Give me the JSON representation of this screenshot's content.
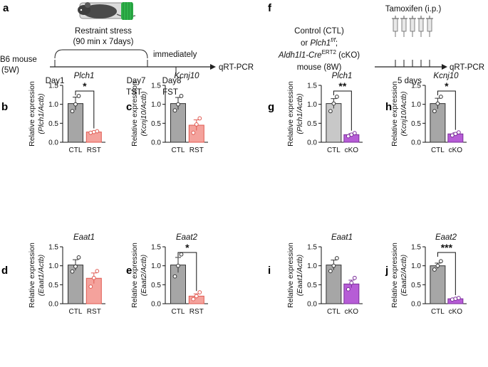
{
  "timeline_a": {
    "label": "a",
    "stress_label": "Restraint stress",
    "stress_detail": "(90 min x 7days)",
    "mouse": "B6 mouse",
    "mouse_age": "(5W)",
    "day1": "Day1",
    "day7": "Day7",
    "day7_test": "TST",
    "day8": "Day8",
    "day8_test": "FST",
    "immediately": "immediately",
    "readout": "qRT-PCR"
  },
  "timeline_f": {
    "label": "f",
    "treatment": "Tamoxifen (i.p.)",
    "line1": "Control (CTL)",
    "line2_prefix": "or ",
    "line2_gene": "Plch1",
    "line2_sup": "f/f",
    "line2_suffix": ";",
    "line3_gene": "Aldh1l1-Cre",
    "line3_sup": "ERT2",
    "line3_suffix": " (cKO)",
    "line4": "mouse (8W)",
    "duration": "5 days",
    "readout": "qRT-PCR"
  },
  "colors": {
    "ctl_gray": "#a6a6a6",
    "ctl_gray_g": "#c8c8c8",
    "rst_pink": "#f4a29c",
    "rst_edge": "#e05a52",
    "cko_purple": "#b65cd6",
    "cko_edge": "#7b2d9a"
  },
  "chart_data": [
    {
      "id": "b",
      "label": "b",
      "type": "bar",
      "title": "Plch1",
      "ylabel": "Relative expression",
      "ylabel_gene": "(Plch1/Actb)",
      "categories": [
        "CTL",
        "RST"
      ],
      "values": [
        1.02,
        0.27
      ],
      "errors": [
        0.17,
        0.02
      ],
      "points": [
        [
          0.82,
          1.0,
          1.22
        ],
        [
          0.25,
          0.27,
          0.29
        ]
      ],
      "ylim": [
        0,
        1.5
      ],
      "yticks": [
        "0.0",
        "0.5",
        "1.0",
        "1.5"
      ],
      "significance": "*",
      "group": "RST"
    },
    {
      "id": "c",
      "label": "c",
      "type": "bar",
      "title": "Kcnj10",
      "ylabel": "Relative expression",
      "ylabel_gene": "(Kcnj10/Actb)",
      "categories": [
        "CTL",
        "RST"
      ],
      "values": [
        1.02,
        0.45
      ],
      "errors": [
        0.16,
        0.14
      ],
      "points": [
        [
          0.84,
          1.0,
          1.22
        ],
        [
          0.25,
          0.47,
          0.63
        ]
      ],
      "ylim": [
        0,
        1.5
      ],
      "yticks": [
        "0.0",
        "0.5",
        "1.0",
        "1.5"
      ],
      "significance": "",
      "group": "RST"
    },
    {
      "id": "d",
      "label": "d",
      "type": "bar",
      "title": "Eaat1",
      "ylabel": "Relative expression",
      "ylabel_gene": "(Eaat1/Actb)",
      "categories": [
        "CTL",
        "RST"
      ],
      "values": [
        1.02,
        0.67
      ],
      "errors": [
        0.14,
        0.14
      ],
      "points": [
        [
          0.85,
          0.98,
          1.22
        ],
        [
          0.45,
          0.68,
          0.86
        ]
      ],
      "ylim": [
        0,
        1.5
      ],
      "yticks": [
        "0.0",
        "0.5",
        "1.0",
        "1.5"
      ],
      "significance": "",
      "group": "RST"
    },
    {
      "id": "e",
      "label": "e",
      "type": "bar",
      "title": "Eaat2",
      "ylabel": "Relative expression",
      "ylabel_gene": "(Eaat2/Actb)",
      "categories": [
        "CTL",
        "RST"
      ],
      "values": [
        1.02,
        0.2
      ],
      "errors": [
        0.2,
        0.06
      ],
      "points": [
        [
          0.72,
          1.0,
          1.3
        ],
        [
          0.12,
          0.2,
          0.3
        ]
      ],
      "ylim": [
        0,
        1.5
      ],
      "yticks": [
        "0.0",
        "0.5",
        "1.0",
        "1.5"
      ],
      "significance": "*",
      "group": "RST"
    },
    {
      "id": "g",
      "label": "g",
      "type": "bar",
      "title": "Plch1",
      "ylabel": "Relative expression",
      "ylabel_gene": "(Plch1/Actb)",
      "categories": [
        "CTL",
        "cKO"
      ],
      "values": [
        1.02,
        0.2
      ],
      "errors": [
        0.13,
        0.03
      ],
      "points": [
        [
          0.82,
          1.02,
          1.2
        ],
        [
          0.16,
          0.2,
          0.24
        ]
      ],
      "ylim": [
        0,
        1.5
      ],
      "yticks": [
        "0.0",
        "0.5",
        "1.0",
        "1.5"
      ],
      "significance": "**",
      "group": "cKO"
    },
    {
      "id": "h",
      "label": "h",
      "type": "bar",
      "title": "Kcnj10",
      "ylabel": "Relative expression",
      "ylabel_gene": "(Kcnj10/Actb)",
      "categories": [
        "CTL",
        "cKO"
      ],
      "values": [
        1.02,
        0.22
      ],
      "errors": [
        0.14,
        0.03
      ],
      "points": [
        [
          0.82,
          1.02,
          1.2
        ],
        [
          0.18,
          0.22,
          0.26
        ]
      ],
      "ylim": [
        0,
        1.5
      ],
      "yticks": [
        "0.0",
        "0.5",
        "1.0",
        "1.5"
      ],
      "significance": "*",
      "group": "cKO"
    },
    {
      "id": "i",
      "label": "i",
      "type": "bar",
      "title": "Eaat1",
      "ylabel": "Relative expression",
      "ylabel_gene": "(Eaat1/Actb)",
      "categories": [
        "CTL",
        "cKO"
      ],
      "values": [
        1.02,
        0.52
      ],
      "errors": [
        0.13,
        0.1
      ],
      "points": [
        [
          0.86,
          1.0,
          1.2
        ],
        [
          0.38,
          0.55,
          0.68
        ]
      ],
      "ylim": [
        0,
        1.5
      ],
      "yticks": [
        "0.0",
        "0.5",
        "1.0",
        "1.5"
      ],
      "significance": "",
      "group": "cKO"
    },
    {
      "id": "j",
      "label": "j",
      "type": "bar",
      "title": "Eaat2",
      "ylabel": "Relative expression",
      "ylabel_gene": "(Eaat2/Actb)",
      "categories": [
        "CTL",
        "cKO"
      ],
      "values": [
        1.0,
        0.13
      ],
      "errors": [
        0.07,
        0.02
      ],
      "points": [
        [
          0.9,
          1.0,
          1.12
        ],
        [
          0.11,
          0.13,
          0.15
        ]
      ],
      "ylim": [
        0,
        1.5
      ],
      "yticks": [
        "0.0",
        "0.5",
        "1.0",
        "1.5"
      ],
      "significance": "***",
      "group": "cKO"
    }
  ]
}
